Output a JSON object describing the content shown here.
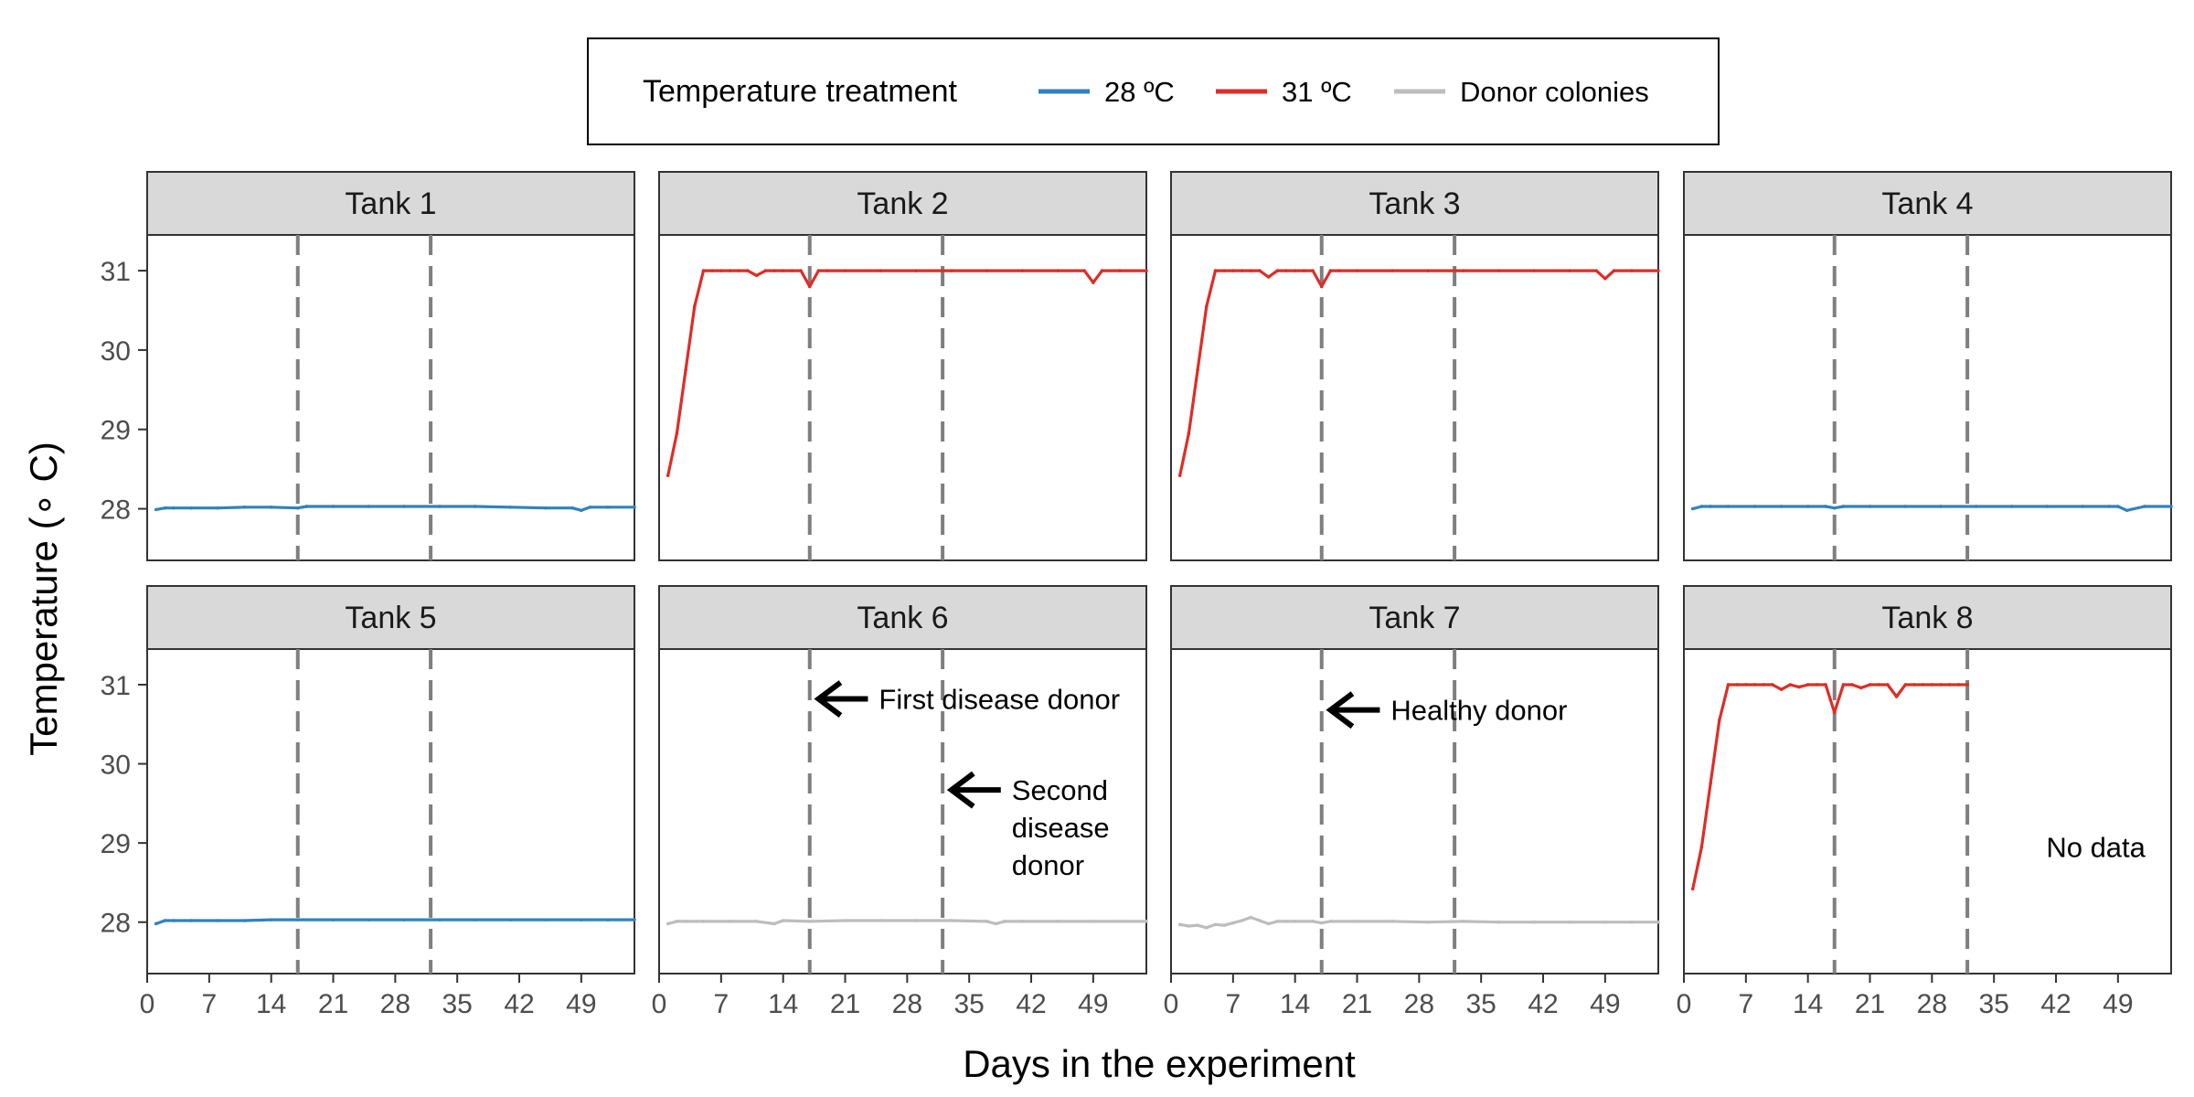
{
  "chart_data": {
    "type": "line",
    "facets": true,
    "xlabel": "Days in the experiment",
    "ylabel": "Temperature (∘ C)",
    "xlim": [
      0,
      55
    ],
    "ylim": [
      27.35,
      31.45
    ],
    "x_ticks": [
      0,
      7,
      14,
      21,
      28,
      35,
      42,
      49
    ],
    "y_ticks": [
      28,
      29,
      30,
      31
    ],
    "vlines": [
      17,
      32
    ],
    "legend": {
      "title": "Temperature treatment",
      "position": "top",
      "entries": [
        {
          "label": "28 ºC",
          "color": "#3182bd"
        },
        {
          "label": "31 ºC",
          "color": "#de2d26"
        },
        {
          "label": "Donor colonies",
          "color": "#bdbdbd"
        }
      ]
    },
    "panels": [
      {
        "name": "Tank 1",
        "series": "28 ºC",
        "color": "#3182bd",
        "x": [
          1,
          2,
          3,
          5,
          8,
          11,
          14,
          17,
          18,
          21,
          25,
          29,
          33,
          37,
          41,
          45,
          48,
          49,
          50,
          52,
          55
        ],
        "y": [
          27.99,
          28.01,
          28.01,
          28.01,
          28.01,
          28.02,
          28.02,
          28.01,
          28.03,
          28.03,
          28.03,
          28.03,
          28.03,
          28.03,
          28.02,
          28.01,
          28.01,
          27.98,
          28.02,
          28.02,
          28.02
        ]
      },
      {
        "name": "Tank 2",
        "series": "31 ºC",
        "color": "#de2d26",
        "x": [
          1,
          2,
          3,
          4,
          5,
          6,
          7,
          8,
          9,
          10,
          11,
          12,
          13,
          14,
          15,
          16,
          17,
          18,
          19,
          21,
          25,
          29,
          33,
          37,
          41,
          45,
          48,
          49,
          50,
          52,
          55
        ],
        "y": [
          28.42,
          28.95,
          29.75,
          30.55,
          31.0,
          31.0,
          31.0,
          31.0,
          31.0,
          31.0,
          30.94,
          31.0,
          31.0,
          31.0,
          31.0,
          31.0,
          30.8,
          31.0,
          31.0,
          31.0,
          31.0,
          31.0,
          31.0,
          31.0,
          31.0,
          31.0,
          31.0,
          30.85,
          31.0,
          31.0,
          31.0
        ]
      },
      {
        "name": "Tank 3",
        "series": "31 ºC",
        "color": "#de2d26",
        "x": [
          1,
          2,
          3,
          4,
          5,
          6,
          7,
          8,
          9,
          10,
          11,
          12,
          13,
          14,
          15,
          16,
          17,
          18,
          19,
          21,
          25,
          29,
          33,
          37,
          41,
          45,
          48,
          49,
          50,
          52,
          55
        ],
        "y": [
          28.42,
          28.95,
          29.75,
          30.55,
          31.0,
          31.0,
          31.0,
          31.0,
          31.0,
          31.0,
          30.92,
          31.0,
          31.0,
          31.0,
          31.0,
          31.0,
          30.8,
          31.0,
          31.0,
          31.0,
          31.0,
          31.0,
          31.0,
          31.0,
          31.0,
          31.0,
          31.0,
          30.9,
          31.0,
          31.0,
          31.0
        ]
      },
      {
        "name": "Tank 4",
        "series": "28 ºC",
        "color": "#3182bd",
        "x": [
          1,
          2,
          3,
          5,
          8,
          11,
          14,
          16,
          17,
          18,
          21,
          25,
          29,
          33,
          37,
          41,
          45,
          48,
          49,
          50,
          52,
          55
        ],
        "y": [
          28.0,
          28.03,
          28.03,
          28.03,
          28.03,
          28.03,
          28.03,
          28.03,
          28.01,
          28.03,
          28.03,
          28.03,
          28.03,
          28.03,
          28.03,
          28.03,
          28.03,
          28.03,
          28.03,
          27.98,
          28.03,
          28.03
        ]
      },
      {
        "name": "Tank 5",
        "series": "28 ºC",
        "color": "#3182bd",
        "x": [
          1,
          2,
          3,
          5,
          8,
          11,
          14,
          17,
          21,
          25,
          29,
          33,
          37,
          41,
          45,
          49,
          52,
          55
        ],
        "y": [
          27.98,
          28.02,
          28.02,
          28.02,
          28.02,
          28.02,
          28.03,
          28.03,
          28.03,
          28.03,
          28.03,
          28.03,
          28.03,
          28.03,
          28.03,
          28.03,
          28.03,
          28.03
        ]
      },
      {
        "name": "Tank 6",
        "series": "Donor colonies",
        "color": "#bdbdbd",
        "x": [
          1,
          2,
          3,
          5,
          8,
          11,
          13,
          14,
          17,
          21,
          25,
          29,
          33,
          37,
          38,
          39,
          41,
          45,
          49,
          52,
          55
        ],
        "y": [
          27.98,
          28.01,
          28.01,
          28.01,
          28.01,
          28.01,
          27.98,
          28.02,
          28.01,
          28.02,
          28.02,
          28.02,
          28.02,
          28.01,
          27.98,
          28.01,
          28.01,
          28.01,
          28.01,
          28.01,
          28.01
        ]
      },
      {
        "name": "Tank 7",
        "series": "Donor colonies",
        "color": "#bdbdbd",
        "x": [
          1,
          2,
          3,
          4,
          5,
          6,
          7,
          8,
          9,
          10,
          11,
          12,
          13,
          14,
          16,
          17,
          18,
          21,
          25,
          29,
          33,
          37,
          41,
          45,
          49,
          52,
          55
        ],
        "y": [
          27.97,
          27.95,
          27.96,
          27.93,
          27.97,
          27.96,
          27.99,
          28.02,
          28.06,
          28.02,
          27.98,
          28.01,
          28.01,
          28.01,
          28.01,
          27.99,
          28.01,
          28.01,
          28.01,
          28.0,
          28.01,
          28.0,
          28.0,
          28.0,
          28.0,
          28.0,
          28.0
        ]
      },
      {
        "name": "Tank 8",
        "series": "31 ºC",
        "color": "#de2d26",
        "x": [
          1,
          2,
          3,
          4,
          5,
          6,
          7,
          8,
          9,
          10,
          11,
          12,
          13,
          14,
          15,
          16,
          17,
          18,
          19,
          20,
          21,
          22,
          23,
          24,
          25,
          26,
          27,
          28,
          29,
          30,
          31,
          32
        ],
        "y": [
          28.42,
          28.95,
          29.75,
          30.55,
          31.0,
          31.0,
          31.0,
          31.0,
          31.0,
          31.0,
          30.94,
          31.0,
          30.97,
          31.0,
          31.0,
          31.0,
          30.65,
          31.0,
          31.0,
          30.96,
          31.0,
          31.0,
          31.0,
          30.85,
          31.0,
          31.0,
          31.0,
          31.0,
          31.0,
          31.0,
          31.0,
          31.0
        ],
        "note": "No data"
      }
    ],
    "annotations": [
      {
        "panel": "Tank 6",
        "text": "First disease donor",
        "arrow_to": [
          18,
          30.82
        ]
      },
      {
        "panel": "Tank 6",
        "text": [
          "Second",
          "disease",
          "donor"
        ],
        "arrow_to": [
          33,
          29.67
        ]
      },
      {
        "panel": "Tank 7",
        "text": "Healthy donor",
        "arrow_to": [
          18,
          30.68
        ]
      }
    ]
  }
}
